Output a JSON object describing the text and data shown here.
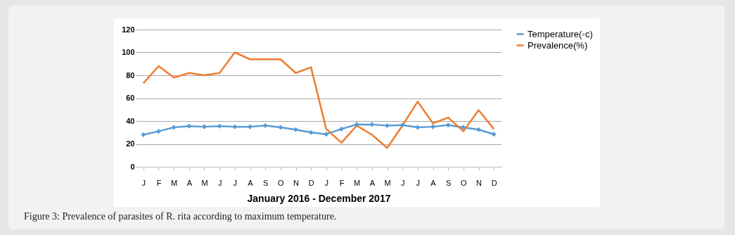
{
  "chart_data": {
    "type": "line",
    "xlabel": "January 2016 - December 2017",
    "categories": [
      "J",
      "F",
      "M",
      "A",
      "M",
      "J",
      "J",
      "A",
      "S",
      "O",
      "N",
      "D",
      "J",
      "F",
      "M",
      "A",
      "M",
      "J",
      "J",
      "A",
      "S",
      "O",
      "N",
      "D"
    ],
    "series": [
      {
        "name": "Temperature(◦c)",
        "color": "#5b9bd5",
        "marker": "diamond",
        "values": [
          28,
          31,
          34.5,
          35.5,
          35,
          35.5,
          35,
          35,
          36,
          34.5,
          32.5,
          30,
          28.5,
          33,
          37,
          37,
          36,
          36.5,
          34.5,
          35,
          36.5,
          34.5,
          32.5,
          28.5
        ]
      },
      {
        "name": "Prevalence(%)",
        "color": "#ed7d31",
        "marker": "none",
        "values": [
          73,
          88,
          78,
          82,
          80,
          82,
          100,
          94,
          94,
          94,
          82,
          87,
          33,
          21,
          36,
          28,
          16.5,
          36,
          57,
          38,
          43,
          31,
          49.5,
          33
        ]
      }
    ],
    "ylim": [
      0,
      120
    ],
    "yticks": [
      0,
      20,
      40,
      60,
      80,
      100,
      120
    ],
    "grid": "y",
    "legend": "right",
    "annotations": [
      "Figure 3: Prevalence of parasites of R. rita according to maximum temperature."
    ]
  }
}
